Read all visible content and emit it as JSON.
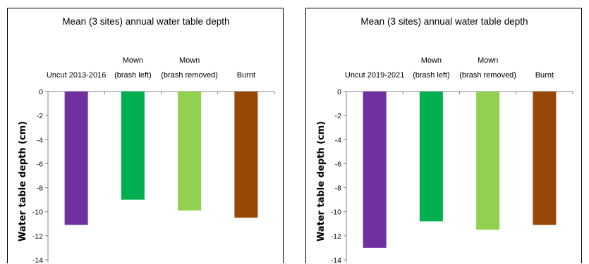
{
  "chart_data": [
    {
      "type": "bar",
      "title": "Mean (3 sites) annual water table depth",
      "ylabel": "Water table depth (cm)",
      "xlabel": "",
      "ylim": [
        -14,
        0
      ],
      "yticks": [
        "0",
        "-2",
        "-4",
        "-6",
        "-8",
        "-10",
        "-12",
        "-14"
      ],
      "grid": false,
      "categories": [
        [
          "Uncut 2013-2016"
        ],
        [
          "Mown",
          "(brash left)"
        ],
        [
          "Mown",
          "(brash removed)"
        ],
        [
          "Burnt"
        ]
      ],
      "values": [
        -11.1,
        -9.0,
        -9.9,
        -10.5
      ],
      "colors": [
        "#7030a0",
        "#00b050",
        "#92d050",
        "#974706"
      ]
    },
    {
      "type": "bar",
      "title": "Mean (3 sites) annual water table depth",
      "ylabel": "Water table depth (cm)",
      "xlabel": "",
      "ylim": [
        -14,
        0
      ],
      "yticks": [
        "0",
        "-2",
        "-4",
        "-6",
        "-8",
        "-10",
        "-12",
        "-14"
      ],
      "grid": false,
      "categories": [
        [
          "Uncut 2019-2021"
        ],
        [
          "Mown",
          "(brash left)"
        ],
        [
          "Mown",
          "(brash removed)"
        ],
        [
          "Burnt"
        ]
      ],
      "values": [
        -13.0,
        -10.8,
        -11.5,
        -11.1
      ],
      "colors": [
        "#7030a0",
        "#00b050",
        "#92d050",
        "#974706"
      ]
    }
  ]
}
